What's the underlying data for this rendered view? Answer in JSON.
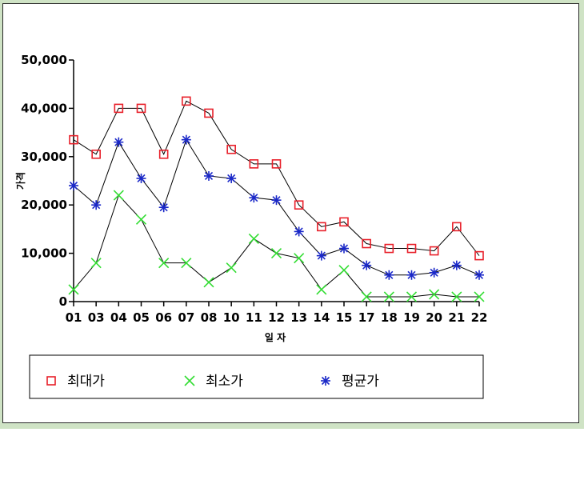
{
  "chart_data": {
    "type": "line",
    "xlabel": "일 자",
    "ylabel": "가격",
    "ylim": [
      0,
      50000
    ],
    "yticks": [
      "0",
      "10,000",
      "20,000",
      "30,000",
      "40,000",
      "50,000"
    ],
    "categories": [
      "01",
      "03",
      "04",
      "05",
      "06",
      "07",
      "08",
      "10",
      "11",
      "12",
      "13",
      "14",
      "15",
      "17",
      "18",
      "19",
      "20",
      "21",
      "22"
    ],
    "series": [
      {
        "name": "최대가",
        "marker": "square",
        "color": "#e8202a",
        "values": [
          33500,
          30500,
          40000,
          40000,
          30500,
          41500,
          39000,
          31500,
          28500,
          28500,
          20000,
          15500,
          16500,
          12000,
          11000,
          11000,
          10500,
          15500,
          9500
        ]
      },
      {
        "name": "최소가",
        "marker": "x",
        "color": "#33dd33",
        "values": [
          2500,
          8000,
          22000,
          17000,
          8000,
          8000,
          4000,
          7000,
          13000,
          10000,
          9000,
          2500,
          6500,
          1000,
          1000,
          1000,
          1500,
          1000,
          1000
        ]
      },
      {
        "name": "평균가",
        "marker": "star",
        "color": "#1a28c8",
        "values": [
          24000,
          20000,
          33000,
          25500,
          19500,
          33500,
          26000,
          25500,
          21500,
          21000,
          14500,
          9500,
          11000,
          7500,
          5500,
          5500,
          6000,
          7500,
          5500
        ]
      }
    ],
    "grid": false,
    "legend": "bottom"
  }
}
